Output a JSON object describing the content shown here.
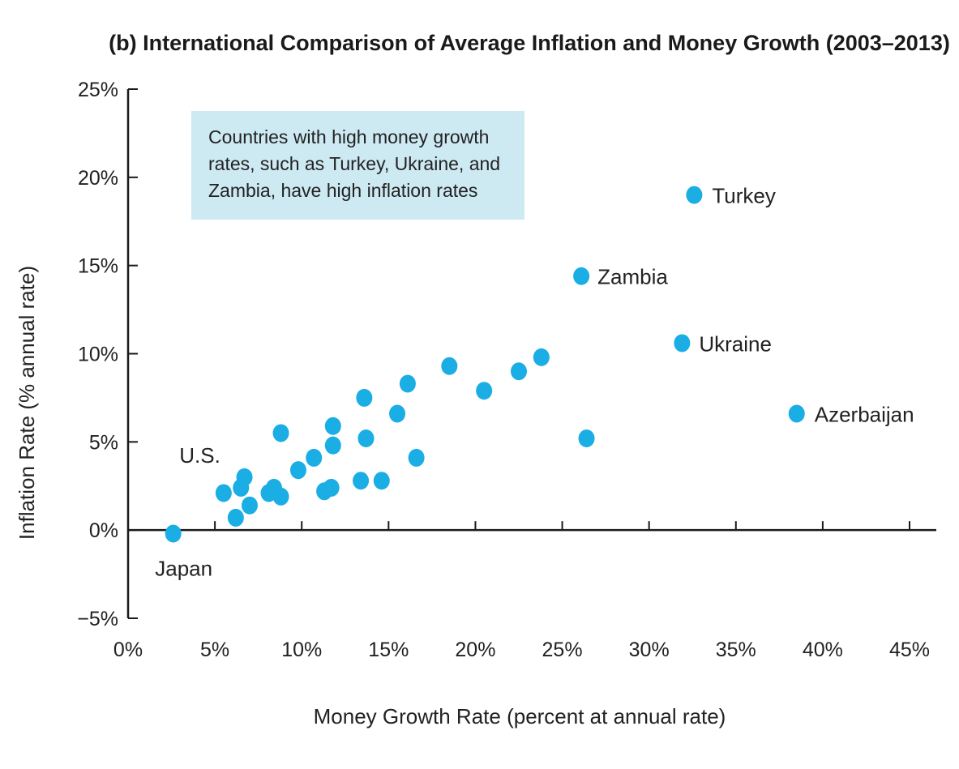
{
  "chart_data": {
    "type": "scatter",
    "title": "(b) International Comparison of Average Inflation and Money Growth (2003–2013)",
    "xlabel": "Money Growth Rate (percent at annual rate)",
    "ylabel": "Inflation Rate (% annual rate)",
    "xlim": [
      0,
      45
    ],
    "ylim": [
      -5,
      25
    ],
    "x_ticks": [
      "0%",
      "5%",
      "10%",
      "15%",
      "20%",
      "25%",
      "30%",
      "35%",
      "40%",
      "45%"
    ],
    "y_ticks": [
      "25%",
      "20%",
      "15%",
      "10%",
      "5%",
      "0%",
      "−5%"
    ],
    "x_tick_values": [
      0,
      5,
      10,
      15,
      20,
      25,
      30,
      35,
      40,
      45
    ],
    "y_tick_values": [
      25,
      20,
      15,
      10,
      5,
      0,
      -5
    ],
    "grid": false,
    "marker_color": "#1aaee5",
    "annotation": {
      "lines": [
        "Countries with high money growth",
        "rates, such as Turkey, Ukraine, and",
        "Zambia, have high inflation rates"
      ],
      "background": "#cde9f2"
    },
    "points": [
      {
        "x": 2.6,
        "y": -0.2,
        "label": "Japan"
      },
      {
        "x": 6.7,
        "y": 3.0,
        "label": "U.S."
      },
      {
        "x": 26.1,
        "y": 14.4,
        "label": "Zambia"
      },
      {
        "x": 32.6,
        "y": 19.0,
        "label": "Turkey"
      },
      {
        "x": 31.9,
        "y": 10.6,
        "label": "Ukraine"
      },
      {
        "x": 38.5,
        "y": 6.6,
        "label": "Azerbaijan"
      },
      {
        "x": 5.5,
        "y": 2.1
      },
      {
        "x": 6.5,
        "y": 2.4
      },
      {
        "x": 6.2,
        "y": 0.7
      },
      {
        "x": 7.0,
        "y": 1.4
      },
      {
        "x": 8.1,
        "y": 2.1
      },
      {
        "x": 8.4,
        "y": 2.4
      },
      {
        "x": 8.8,
        "y": 1.9
      },
      {
        "x": 8.8,
        "y": 5.5
      },
      {
        "x": 9.8,
        "y": 3.4
      },
      {
        "x": 10.7,
        "y": 4.1
      },
      {
        "x": 11.3,
        "y": 2.2
      },
      {
        "x": 11.7,
        "y": 2.4
      },
      {
        "x": 11.8,
        "y": 5.9
      },
      {
        "x": 11.8,
        "y": 4.8
      },
      {
        "x": 13.4,
        "y": 2.8
      },
      {
        "x": 13.6,
        "y": 7.5
      },
      {
        "x": 13.7,
        "y": 5.2
      },
      {
        "x": 14.6,
        "y": 2.8
      },
      {
        "x": 15.5,
        "y": 6.6
      },
      {
        "x": 16.1,
        "y": 8.3
      },
      {
        "x": 16.6,
        "y": 4.1
      },
      {
        "x": 18.5,
        "y": 9.3
      },
      {
        "x": 20.5,
        "y": 7.9
      },
      {
        "x": 22.5,
        "y": 9.0
      },
      {
        "x": 23.8,
        "y": 9.8
      },
      {
        "x": 26.4,
        "y": 5.2
      }
    ]
  }
}
